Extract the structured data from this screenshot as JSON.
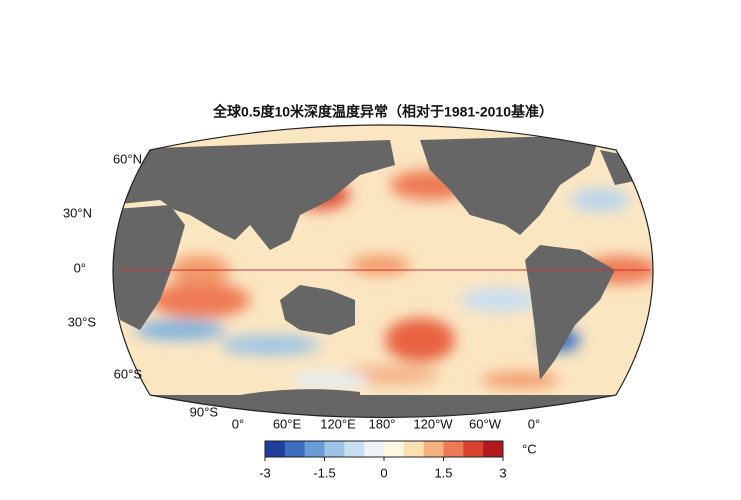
{
  "title": "全球0.5度10米深度温度异常（相对于1981-2010基准）",
  "lat_labels": [
    "60°N",
    "30°N",
    "0°",
    "30°S",
    "60°S",
    "90°S"
  ],
  "lon_labels": [
    "0°",
    "60°E",
    "120°E",
    "180°",
    "120°W",
    "60°W",
    "0°"
  ],
  "colorbar": {
    "range": [
      -3,
      3
    ],
    "ticks": [
      -3,
      -1.5,
      0,
      1.5,
      3
    ],
    "unit": "°C"
  }
}
